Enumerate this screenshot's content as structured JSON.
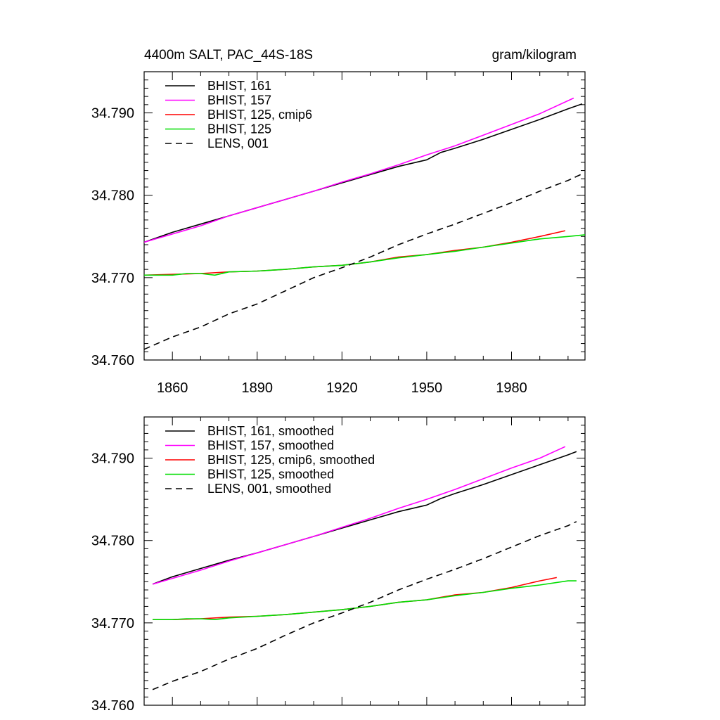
{
  "chart_data": [
    {
      "type": "line",
      "title_left": "4400m SALT, PAC_44S-18S",
      "title_right": "gram/kilogram",
      "xlim": [
        1850,
        2006
      ],
      "ylim": [
        34.76,
        34.795
      ],
      "xticks": [
        "1860",
        "1890",
        "1920",
        "1950",
        "1980"
      ],
      "xtick_values": [
        1860,
        1890,
        1920,
        1950,
        1980
      ],
      "yticks": [
        "34.760",
        "34.770",
        "34.780",
        "34.790"
      ],
      "ytick_values": [
        34.76,
        34.77,
        34.78,
        34.79
      ],
      "legend_position": "top-left",
      "series": [
        {
          "name": "BHIST, 161",
          "color": "#000000",
          "dash": "solid",
          "x": [
            1850,
            1860,
            1870,
            1880,
            1890,
            1900,
            1910,
            1920,
            1930,
            1940,
            1950,
            1955,
            1960,
            1970,
            1980,
            1990,
            2000,
            2005
          ],
          "y": [
            34.7743,
            34.7755,
            34.7765,
            34.7775,
            34.7785,
            34.7795,
            34.7805,
            34.7815,
            34.7825,
            34.7835,
            34.7843,
            34.7852,
            34.7857,
            34.7868,
            34.788,
            34.7892,
            34.7905,
            34.7911
          ]
        },
        {
          "name": "BHIST, 157",
          "color": "#ff00ff",
          "dash": "solid",
          "x": [
            1850,
            1860,
            1870,
            1880,
            1890,
            1900,
            1910,
            1920,
            1930,
            1940,
            1950,
            1960,
            1970,
            1980,
            1990,
            2002
          ],
          "y": [
            34.7743,
            34.7753,
            34.7763,
            34.7775,
            34.7785,
            34.7795,
            34.7805,
            34.7816,
            34.7826,
            34.7837,
            34.7849,
            34.786,
            34.7873,
            34.7886,
            34.7899,
            34.7918
          ]
        },
        {
          "name": "BHIST, 125, cmip6",
          "color": "#ff0000",
          "dash": "solid",
          "x": [
            1850,
            1860,
            1870,
            1880,
            1890,
            1900,
            1910,
            1920,
            1930,
            1940,
            1950,
            1960,
            1970,
            1980,
            1990,
            1999
          ],
          "y": [
            34.7703,
            34.7704,
            34.7705,
            34.7707,
            34.7708,
            34.771,
            34.7713,
            34.7715,
            34.7719,
            34.7725,
            34.7728,
            34.7733,
            34.7737,
            34.7743,
            34.775,
            34.7757
          ]
        },
        {
          "name": "BHIST, 125",
          "color": "#00dd00",
          "dash": "solid",
          "x": [
            1850,
            1860,
            1865,
            1870,
            1875,
            1880,
            1890,
            1900,
            1910,
            1920,
            1930,
            1940,
            1950,
            1960,
            1970,
            1980,
            1990,
            2000,
            2006
          ],
          "y": [
            34.7703,
            34.7703,
            34.7705,
            34.7705,
            34.7703,
            34.7707,
            34.7708,
            34.771,
            34.7713,
            34.7715,
            34.7719,
            34.7724,
            34.7728,
            34.7732,
            34.7737,
            34.7742,
            34.7747,
            34.775,
            34.7752
          ]
        },
        {
          "name": "LENS, 001",
          "color": "#000000",
          "dash": "dashed",
          "x": [
            1850,
            1860,
            1870,
            1880,
            1890,
            1900,
            1910,
            1920,
            1930,
            1940,
            1950,
            1960,
            1970,
            1980,
            1990,
            2000,
            2005
          ],
          "y": [
            34.7613,
            34.7628,
            34.764,
            34.7656,
            34.7668,
            34.7684,
            34.77,
            34.7712,
            34.7725,
            34.774,
            34.7753,
            34.7765,
            34.7778,
            34.7791,
            34.7805,
            34.7818,
            34.7826
          ]
        }
      ]
    },
    {
      "type": "line",
      "xlim": [
        1850,
        2006
      ],
      "ylim": [
        34.76,
        34.795
      ],
      "xtick_values": [
        1860,
        1890,
        1920,
        1950,
        1980
      ],
      "yticks": [
        "34.760",
        "34.770",
        "34.780",
        "34.790"
      ],
      "ytick_values": [
        34.76,
        34.77,
        34.78,
        34.79
      ],
      "legend_position": "top-left",
      "series": [
        {
          "name": "BHIST, 161, smoothed",
          "color": "#000000",
          "dash": "solid",
          "x": [
            1853,
            1860,
            1870,
            1880,
            1890,
            1900,
            1910,
            1920,
            1930,
            1940,
            1950,
            1955,
            1960,
            1970,
            1980,
            1990,
            2000,
            2003
          ],
          "y": [
            34.7747,
            34.7756,
            34.7766,
            34.7776,
            34.7785,
            34.7795,
            34.7805,
            34.7815,
            34.7825,
            34.7835,
            34.7843,
            34.7851,
            34.7857,
            34.7868,
            34.788,
            34.7892,
            34.7904,
            34.7908
          ]
        },
        {
          "name": "BHIST, 157, smoothed",
          "color": "#ff00ff",
          "dash": "solid",
          "x": [
            1853,
            1860,
            1870,
            1880,
            1890,
            1900,
            1910,
            1920,
            1930,
            1940,
            1950,
            1960,
            1970,
            1980,
            1990,
            1999
          ],
          "y": [
            34.7747,
            34.7754,
            34.7764,
            34.7775,
            34.7785,
            34.7795,
            34.7805,
            34.7816,
            34.7827,
            34.7839,
            34.785,
            34.7862,
            34.7875,
            34.7888,
            34.79,
            34.7914
          ]
        },
        {
          "name": "BHIST, 125, cmip6, smoothed",
          "color": "#ff0000",
          "dash": "solid",
          "x": [
            1853,
            1860,
            1870,
            1880,
            1890,
            1900,
            1910,
            1920,
            1930,
            1940,
            1950,
            1960,
            1970,
            1980,
            1990,
            1996
          ],
          "y": [
            34.7704,
            34.7704,
            34.7705,
            34.7707,
            34.7708,
            34.771,
            34.7713,
            34.7716,
            34.772,
            34.7725,
            34.7728,
            34.7734,
            34.7737,
            34.7743,
            34.7751,
            34.7755
          ]
        },
        {
          "name": "BHIST, 125, smoothed",
          "color": "#00dd00",
          "dash": "solid",
          "x": [
            1853,
            1860,
            1865,
            1870,
            1875,
            1880,
            1890,
            1900,
            1910,
            1920,
            1930,
            1940,
            1950,
            1960,
            1970,
            1980,
            1990,
            2000,
            2003
          ],
          "y": [
            34.7704,
            34.7704,
            34.7705,
            34.7705,
            34.7704,
            34.7706,
            34.7708,
            34.771,
            34.7713,
            34.7716,
            34.772,
            34.7725,
            34.7728,
            34.7733,
            34.7737,
            34.7742,
            34.7746,
            34.7751,
            34.7751
          ]
        },
        {
          "name": "LENS, 001, smoothed",
          "color": "#000000",
          "dash": "dashed",
          "x": [
            1853,
            1860,
            1870,
            1880,
            1890,
            1900,
            1910,
            1920,
            1930,
            1940,
            1950,
            1960,
            1970,
            1980,
            1990,
            2000,
            2003
          ],
          "y": [
            34.7619,
            34.7629,
            34.7641,
            34.7656,
            34.7669,
            34.7685,
            34.77,
            34.7712,
            34.7725,
            34.774,
            34.7753,
            34.7765,
            34.7778,
            34.7792,
            34.7806,
            34.7818,
            34.7823
          ]
        }
      ]
    }
  ]
}
